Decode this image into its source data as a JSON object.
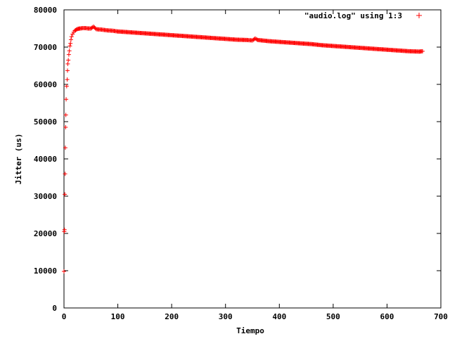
{
  "chart_data": {
    "type": "scatter",
    "title": "",
    "xlabel": "Tiempo",
    "ylabel": "Jitter (us)",
    "xlim": [
      0,
      700
    ],
    "ylim": [
      0,
      80000
    ],
    "xticks": [
      0,
      100,
      200,
      300,
      400,
      500,
      600,
      700
    ],
    "yticks": [
      0,
      10000,
      20000,
      30000,
      40000,
      50000,
      60000,
      70000,
      80000
    ],
    "grid": false,
    "legend_position": "top-right",
    "marker": "plus",
    "color": "#ff0000",
    "series": [
      {
        "name": "\"audio.log\" using 1:3",
        "points": [
          [
            0,
            9800
          ],
          [
            0.5,
            20500
          ],
          [
            1,
            21000
          ],
          [
            1.5,
            30500
          ],
          [
            2,
            36000
          ],
          [
            2.5,
            43000
          ],
          [
            3,
            48500
          ],
          [
            3.5,
            51800
          ],
          [
            4,
            56000
          ],
          [
            5,
            59500
          ],
          [
            6,
            61300
          ],
          [
            6.5,
            63700
          ],
          [
            7,
            65500
          ],
          [
            8,
            66500
          ],
          [
            9,
            68000
          ],
          [
            10,
            69000
          ],
          [
            11,
            70300
          ],
          [
            12,
            71000
          ],
          [
            13,
            72000
          ],
          [
            14,
            72800
          ],
          [
            16,
            73500
          ],
          [
            18,
            74000
          ],
          [
            20,
            74400
          ],
          [
            23,
            74700
          ],
          [
            26,
            74900
          ],
          [
            30,
            75000
          ],
          [
            35,
            75100
          ],
          [
            40,
            75100
          ],
          [
            45,
            75000
          ],
          [
            50,
            75000
          ],
          [
            55,
            75500
          ],
          [
            60,
            74800
          ],
          [
            70,
            74700
          ],
          [
            80,
            74500
          ],
          [
            90,
            74400
          ],
          [
            100,
            74200
          ],
          [
            120,
            74000
          ],
          [
            140,
            73800
          ],
          [
            160,
            73600
          ],
          [
            180,
            73400
          ],
          [
            200,
            73200
          ],
          [
            220,
            73000
          ],
          [
            240,
            72800
          ],
          [
            260,
            72600
          ],
          [
            280,
            72400
          ],
          [
            300,
            72200
          ],
          [
            320,
            72000
          ],
          [
            340,
            71900
          ],
          [
            350,
            71800
          ],
          [
            355,
            72300
          ],
          [
            360,
            71900
          ],
          [
            380,
            71600
          ],
          [
            400,
            71400
          ],
          [
            420,
            71200
          ],
          [
            440,
            71000
          ],
          [
            460,
            70800
          ],
          [
            480,
            70500
          ],
          [
            500,
            70300
          ],
          [
            520,
            70100
          ],
          [
            540,
            69900
          ],
          [
            560,
            69700
          ],
          [
            580,
            69500
          ],
          [
            600,
            69300
          ],
          [
            620,
            69100
          ],
          [
            640,
            68900
          ],
          [
            660,
            68800
          ],
          [
            666,
            68900
          ]
        ]
      }
    ]
  }
}
